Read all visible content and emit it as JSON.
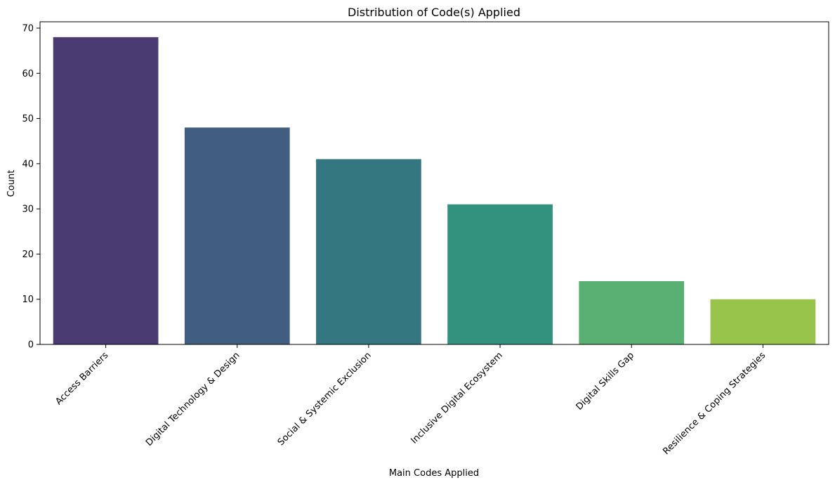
{
  "chart_data": {
    "type": "bar",
    "title": "Distribution of Code(s) Applied",
    "xlabel": "Main Codes Applied",
    "ylabel": "Count",
    "categories": [
      "Access Barriers",
      "Digital Technology & Design",
      "Social & Systemic Exclusion",
      "Inclusive Digital Ecosystem",
      "Digital Skills Gap",
      "Resilience & Coping Strategies"
    ],
    "values": [
      68,
      48,
      41,
      31,
      14,
      10
    ],
    "colors": [
      "#4a3b72",
      "#415e80",
      "#347780",
      "#32927e",
      "#5ab072",
      "#99c44c"
    ],
    "ylim": [
      0,
      71.4
    ],
    "yticks": [
      0,
      10,
      20,
      30,
      40,
      50,
      60,
      70
    ],
    "grid": false,
    "legend": "none"
  }
}
